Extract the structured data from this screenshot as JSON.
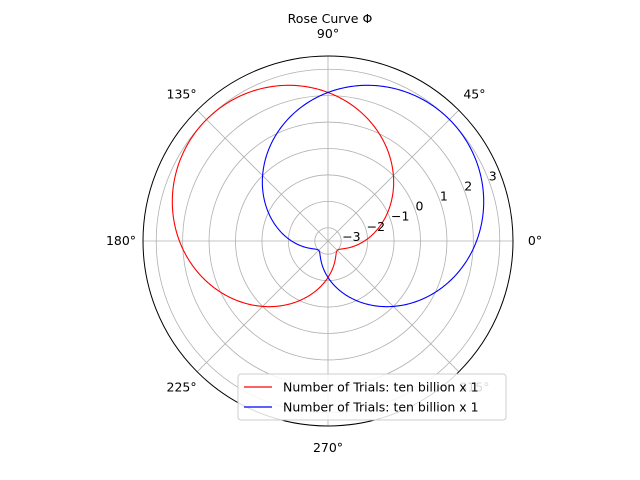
{
  "chart_data": {
    "type": "line",
    "projection": "polar",
    "title": "Rose Curve Φ",
    "angle_ticks": [
      "0°",
      "45°",
      "90°",
      "135°",
      "180°",
      "225°",
      "270°",
      "315°"
    ],
    "radial_ticks": [
      "−3",
      "−2",
      "−1",
      "0",
      "1",
      "2",
      "3"
    ],
    "radial_tick_values": [
      -3,
      -2,
      -1,
      0,
      1,
      2,
      3
    ],
    "rlim": [
      -3.5,
      3.5
    ],
    "grid": true,
    "legend_position": "lower right",
    "series": [
      {
        "name": "Number of Trials: ten billion x 1",
        "color": "#ff0000",
        "equation": "r = 3 cos(θ − 3π/4), θ ∈ [0, 2π]",
        "theta_deg": [
          0,
          45,
          90,
          135,
          180,
          225,
          270,
          315,
          360
        ],
        "r": [
          -2.12,
          0,
          2.12,
          3,
          2.12,
          0,
          -2.12,
          -3,
          -2.12
        ]
      },
      {
        "name": "Number of Trials: ten billion x 1",
        "color": "#0000ff",
        "equation": "r = 3 cos(θ − π/4), θ ∈ [0, 2π]",
        "theta_deg": [
          0,
          45,
          90,
          135,
          180,
          225,
          270,
          315,
          360
        ],
        "r": [
          2.12,
          3,
          2.12,
          0,
          -2.12,
          -3,
          -2.12,
          0,
          2.12
        ]
      }
    ]
  }
}
